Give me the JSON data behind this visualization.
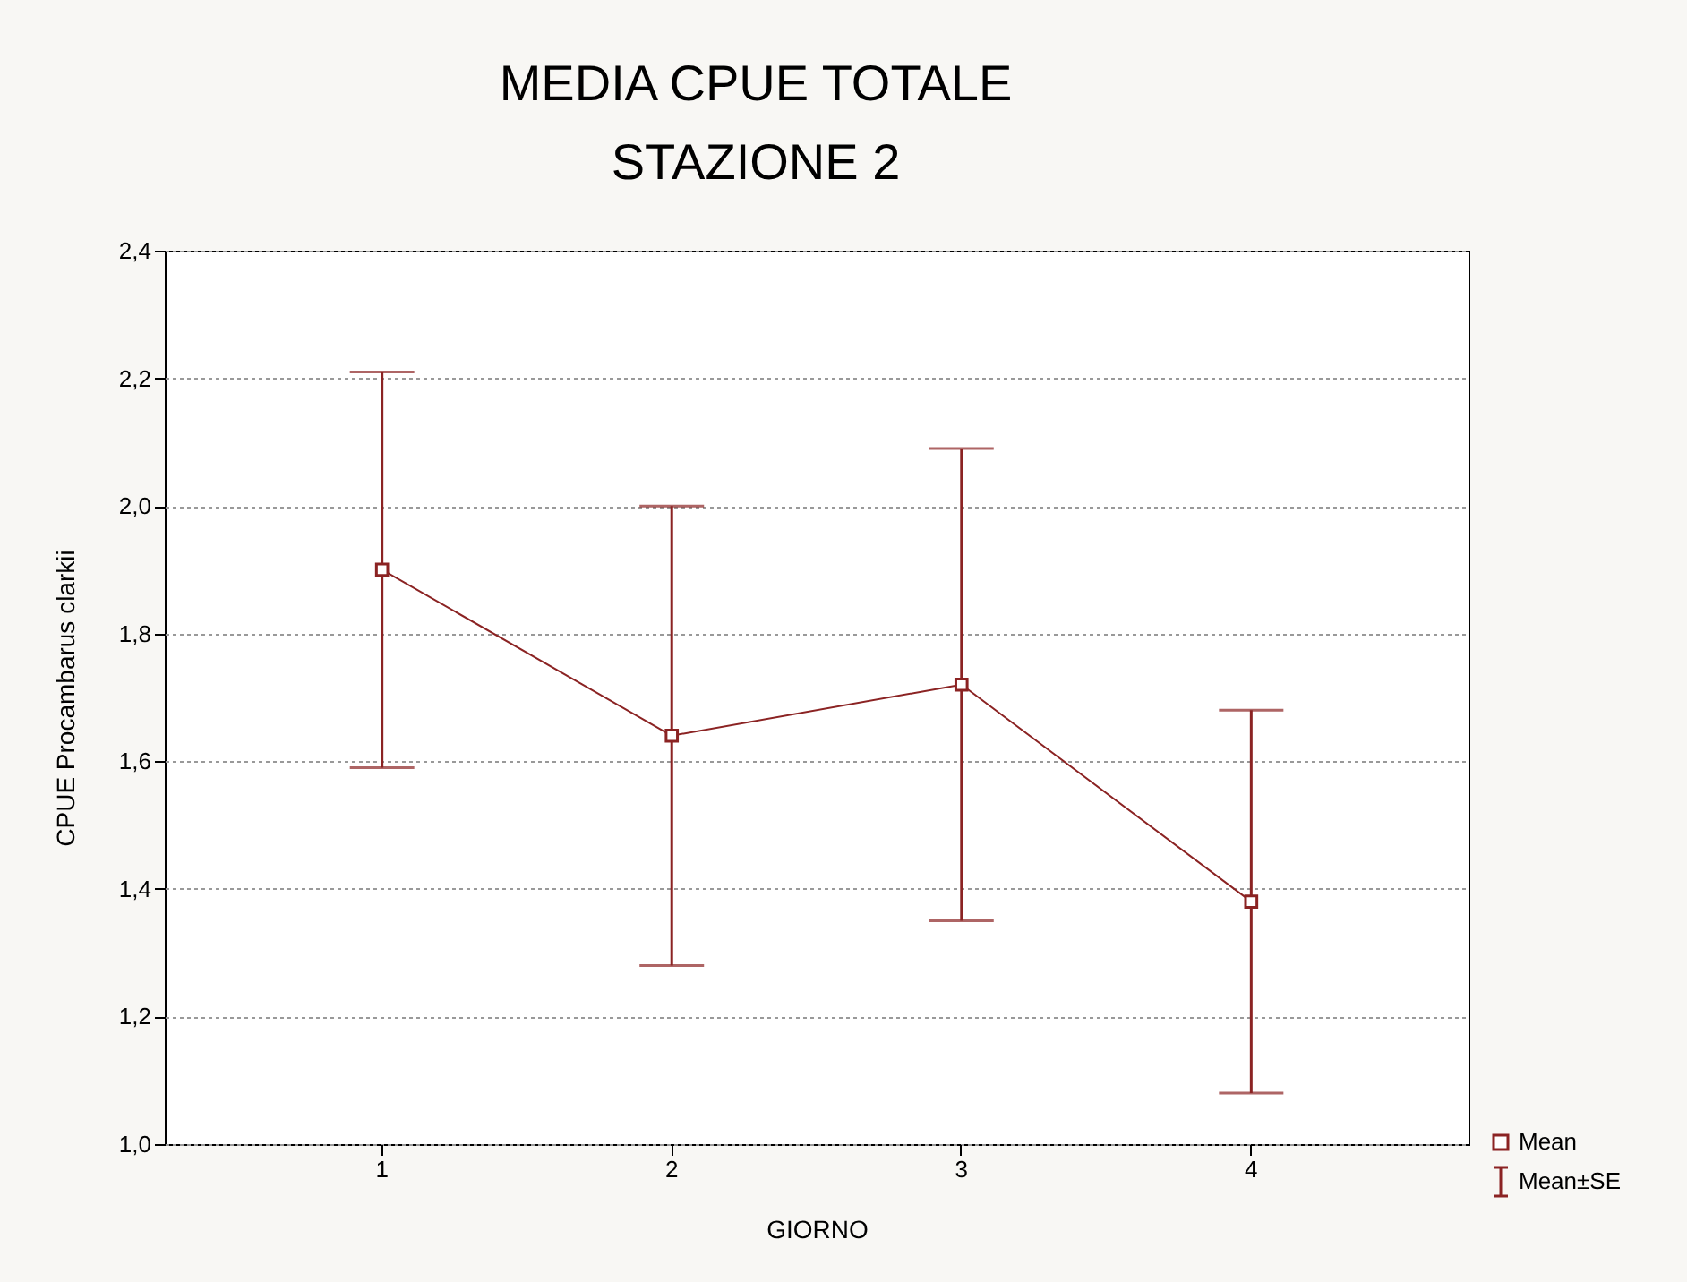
{
  "chart_data": {
    "type": "line",
    "title": "MEDIA CPUE TOTALE\nSTAZIONE 2",
    "xlabel": "GIORNO",
    "ylabel": "CPUE Procambarus clarkii",
    "categories": [
      "1",
      "2",
      "3",
      "4"
    ],
    "series": [
      {
        "name": "Mean",
        "color": "#8b2323",
        "values": [
          1.9,
          1.64,
          1.72,
          1.38
        ],
        "errors": [
          [
            1.59,
            2.21
          ],
          [
            1.28,
            2.0
          ],
          [
            1.35,
            2.09
          ],
          [
            1.08,
            1.68
          ]
        ]
      }
    ],
    "annotations": [
      "Mean±SE"
    ],
    "ylim": [
      1.0,
      2.4
    ],
    "yticks": [
      {
        "value": 1.0,
        "label": "1,0"
      },
      {
        "value": 1.2,
        "label": "1,2"
      },
      {
        "value": 1.4,
        "label": "1,4"
      },
      {
        "value": 1.6,
        "label": "1,6"
      },
      {
        "value": 1.8,
        "label": "1,8"
      },
      {
        "value": 2.0,
        "label": "2,0"
      },
      {
        "value": 2.2,
        "label": "2,2"
      },
      {
        "value": 2.4,
        "label": "2,4"
      }
    ],
    "grid": "y",
    "legend": "bottom right",
    "marker": "square",
    "line_style": "solid"
  }
}
